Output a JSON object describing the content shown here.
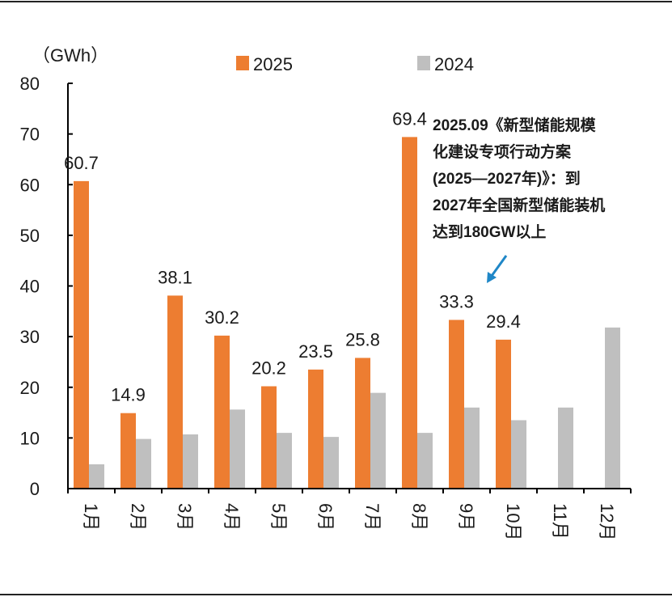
{
  "chart_data": {
    "type": "bar",
    "unit_label": "（GWh）",
    "categories": [
      "1月",
      "2月",
      "3月",
      "4月",
      "5月",
      "6月",
      "7月",
      "8月",
      "9月",
      "10月",
      "11月",
      "12月"
    ],
    "series": [
      {
        "name": "2025",
        "color": "#ED7D31",
        "values": [
          60.7,
          14.9,
          38.1,
          30.2,
          20.2,
          23.5,
          25.8,
          69.4,
          33.3,
          29.4,
          null,
          null
        ],
        "labels": [
          "60.7",
          "14.9",
          "38.1",
          "30.2",
          "20.2",
          "23.5",
          "25.8",
          "69.4",
          "33.3",
          "29.4",
          null,
          null
        ]
      },
      {
        "name": "2024",
        "color": "#BFBFBF",
        "values": [
          4.8,
          9.8,
          10.7,
          15.6,
          11.0,
          10.2,
          18.9,
          11.0,
          16.0,
          13.5,
          16.0,
          31.8
        ]
      }
    ],
    "ylim": [
      0,
      80
    ],
    "yticks": [
      0,
      10,
      20,
      30,
      40,
      50,
      60,
      70,
      80
    ],
    "annotation": {
      "lines": [
        "2025.09《新型储能规模",
        "化建设专项行动方案",
        "(2025—2027年)》：到",
        "2027年全国新型储能装机",
        "达到180GW以上"
      ],
      "arrow_color": "#1F87C7"
    }
  }
}
